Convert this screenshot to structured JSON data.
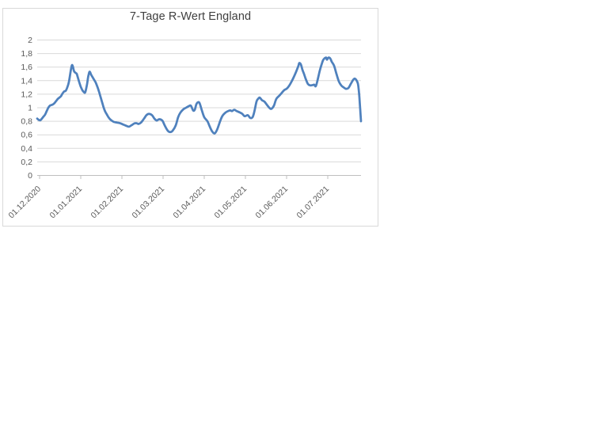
{
  "page": {
    "background": "#ffffff"
  },
  "chart": {
    "colors": {
      "series_line": "#4f81bd",
      "gridline": "#d9d9d9",
      "axis_line": "#bfbfbf",
      "tick_label": "#595959",
      "title_text": "#404040",
      "chart_border": "#d9d9d9",
      "chart_background": "#ffffff"
    }
  },
  "chart_data": {
    "type": "line",
    "title": "7-Tage R-Wert England",
    "xlabel": "",
    "ylabel": "",
    "ylim": [
      0,
      2
    ],
    "y_tick_step": 0.2,
    "y_tick_labels_top_to_bottom": [
      "2",
      "1,8",
      "1,6",
      "1,4",
      "1,2",
      "1",
      "0,8",
      "0,6",
      "0,4",
      "0,2",
      "0"
    ],
    "x_tick_labels": [
      "01.12.2020",
      "01.01.2021",
      "01.02.2021",
      "01.03.2021",
      "01.04.2021",
      "01.05.2021",
      "01.06.2021",
      "01.07.2021"
    ],
    "x_unit": "months since first tick 01.12.2020; tick spacing = 1 month; data runs ~29.11.2020 to ~26.07.2021",
    "x_range": [
      -0.06,
      7.81
    ],
    "grid": true,
    "legend": false,
    "line_smoothed": true,
    "series": [
      {
        "name": "7-Tage R-Wert England",
        "points": [
          [
            -0.058,
            0.84
          ],
          [
            -0.019,
            0.82
          ],
          [
            0.019,
            0.815
          ],
          [
            0.058,
            0.84
          ],
          [
            0.096,
            0.87
          ],
          [
            0.135,
            0.9
          ],
          [
            0.173,
            0.95
          ],
          [
            0.212,
            1.0
          ],
          [
            0.25,
            1.03
          ],
          [
            0.288,
            1.04
          ],
          [
            0.327,
            1.05
          ],
          [
            0.365,
            1.07
          ],
          [
            0.404,
            1.1
          ],
          [
            0.442,
            1.13
          ],
          [
            0.481,
            1.15
          ],
          [
            0.519,
            1.17
          ],
          [
            0.558,
            1.21
          ],
          [
            0.596,
            1.24
          ],
          [
            0.635,
            1.25
          ],
          [
            0.673,
            1.3
          ],
          [
            0.712,
            1.38
          ],
          [
            0.75,
            1.52
          ],
          [
            0.769,
            1.59
          ],
          [
            0.788,
            1.63
          ],
          [
            0.808,
            1.61
          ],
          [
            0.827,
            1.56
          ],
          [
            0.846,
            1.53
          ],
          [
            0.885,
            1.51
          ],
          [
            0.904,
            1.5
          ],
          [
            0.923,
            1.46
          ],
          [
            0.962,
            1.38
          ],
          [
            1.0,
            1.31
          ],
          [
            1.038,
            1.26
          ],
          [
            1.077,
            1.23
          ],
          [
            1.096,
            1.22
          ],
          [
            1.115,
            1.24
          ],
          [
            1.154,
            1.35
          ],
          [
            1.173,
            1.43
          ],
          [
            1.192,
            1.49
          ],
          [
            1.212,
            1.53
          ],
          [
            1.231,
            1.52
          ],
          [
            1.25,
            1.49
          ],
          [
            1.288,
            1.45
          ],
          [
            1.327,
            1.41
          ],
          [
            1.365,
            1.37
          ],
          [
            1.404,
            1.31
          ],
          [
            1.442,
            1.24
          ],
          [
            1.481,
            1.16
          ],
          [
            1.519,
            1.08
          ],
          [
            1.558,
            1.0
          ],
          [
            1.596,
            0.94
          ],
          [
            1.635,
            0.9
          ],
          [
            1.673,
            0.86
          ],
          [
            1.712,
            0.83
          ],
          [
            1.75,
            0.81
          ],
          [
            1.808,
            0.79
          ],
          [
            1.885,
            0.78
          ],
          [
            1.962,
            0.77
          ],
          [
            2.038,
            0.75
          ],
          [
            2.115,
            0.73
          ],
          [
            2.173,
            0.72
          ],
          [
            2.231,
            0.74
          ],
          [
            2.308,
            0.77
          ],
          [
            2.365,
            0.77
          ],
          [
            2.404,
            0.76
          ],
          [
            2.462,
            0.78
          ],
          [
            2.538,
            0.84
          ],
          [
            2.596,
            0.89
          ],
          [
            2.654,
            0.91
          ],
          [
            2.731,
            0.89
          ],
          [
            2.788,
            0.84
          ],
          [
            2.846,
            0.81
          ],
          [
            2.904,
            0.83
          ],
          [
            2.981,
            0.81
          ],
          [
            3.038,
            0.74
          ],
          [
            3.115,
            0.66
          ],
          [
            3.173,
            0.64
          ],
          [
            3.231,
            0.66
          ],
          [
            3.308,
            0.74
          ],
          [
            3.365,
            0.86
          ],
          [
            3.423,
            0.93
          ],
          [
            3.5,
            0.98
          ],
          [
            3.558,
            1.0
          ],
          [
            3.615,
            1.02
          ],
          [
            3.673,
            1.03
          ],
          [
            3.731,
            0.96
          ],
          [
            3.769,
            0.97
          ],
          [
            3.808,
            1.05
          ],
          [
            3.846,
            1.08
          ],
          [
            3.885,
            1.07
          ],
          [
            3.942,
            0.96
          ],
          [
            4.0,
            0.86
          ],
          [
            4.077,
            0.8
          ],
          [
            4.135,
            0.72
          ],
          [
            4.192,
            0.65
          ],
          [
            4.25,
            0.62
          ],
          [
            4.308,
            0.67
          ],
          [
            4.385,
            0.8
          ],
          [
            4.442,
            0.88
          ],
          [
            4.519,
            0.93
          ],
          [
            4.577,
            0.95
          ],
          [
            4.635,
            0.96
          ],
          [
            4.673,
            0.95
          ],
          [
            4.731,
            0.97
          ],
          [
            4.788,
            0.95
          ],
          [
            4.865,
            0.93
          ],
          [
            4.923,
            0.91
          ],
          [
            4.981,
            0.875
          ],
          [
            5.058,
            0.89
          ],
          [
            5.115,
            0.85
          ],
          [
            5.173,
            0.86
          ],
          [
            5.212,
            0.93
          ],
          [
            5.269,
            1.09
          ],
          [
            5.308,
            1.13
          ],
          [
            5.346,
            1.15
          ],
          [
            5.404,
            1.11
          ],
          [
            5.462,
            1.09
          ],
          [
            5.538,
            1.03
          ],
          [
            5.596,
            0.99
          ],
          [
            5.635,
            0.985
          ],
          [
            5.692,
            1.03
          ],
          [
            5.75,
            1.13
          ],
          [
            5.827,
            1.18
          ],
          [
            5.885,
            1.22
          ],
          [
            5.942,
            1.26
          ],
          [
            6.0,
            1.28
          ],
          [
            6.058,
            1.32
          ],
          [
            6.115,
            1.38
          ],
          [
            6.173,
            1.45
          ],
          [
            6.231,
            1.53
          ],
          [
            6.288,
            1.62
          ],
          [
            6.308,
            1.66
          ],
          [
            6.346,
            1.64
          ],
          [
            6.385,
            1.56
          ],
          [
            6.423,
            1.5
          ],
          [
            6.462,
            1.43
          ],
          [
            6.519,
            1.35
          ],
          [
            6.577,
            1.33
          ],
          [
            6.635,
            1.335
          ],
          [
            6.673,
            1.34
          ],
          [
            6.712,
            1.32
          ],
          [
            6.769,
            1.45
          ],
          [
            6.808,
            1.55
          ],
          [
            6.846,
            1.63
          ],
          [
            6.885,
            1.7
          ],
          [
            6.923,
            1.73
          ],
          [
            6.962,
            1.74
          ],
          [
            6.981,
            1.71
          ],
          [
            7.019,
            1.74
          ],
          [
            7.058,
            1.73
          ],
          [
            7.096,
            1.68
          ],
          [
            7.154,
            1.62
          ],
          [
            7.212,
            1.5
          ],
          [
            7.269,
            1.39
          ],
          [
            7.327,
            1.33
          ],
          [
            7.385,
            1.3
          ],
          [
            7.442,
            1.28
          ],
          [
            7.5,
            1.29
          ],
          [
            7.558,
            1.35
          ],
          [
            7.615,
            1.41
          ],
          [
            7.654,
            1.43
          ],
          [
            7.692,
            1.41
          ],
          [
            7.731,
            1.36
          ],
          [
            7.75,
            1.28
          ],
          [
            7.769,
            1.15
          ],
          [
            7.788,
            0.98
          ],
          [
            7.808,
            0.8
          ]
        ]
      }
    ]
  }
}
